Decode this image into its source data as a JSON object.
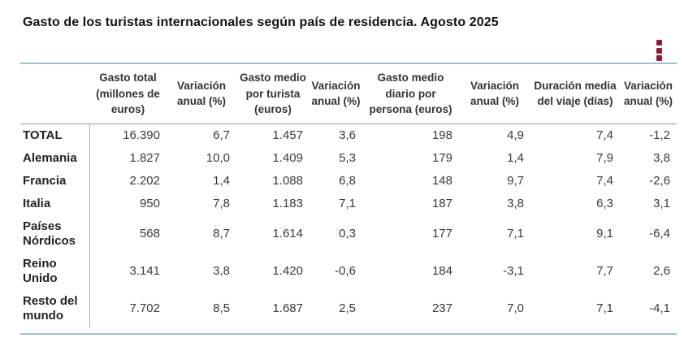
{
  "title": "Gasto de los turistas internacionales según país de residencia. Agosto 2025",
  "toolbar": {
    "options_menu_icon": "kebab-menu-icon"
  },
  "colors": {
    "accent": "#8c1b3c",
    "table_frame": "#a5bec6",
    "header_rule": "#9c9c9c",
    "column_rule": "#b2b2b2"
  },
  "chart_data": {
    "type": "table",
    "title": "Gasto de los turistas internacionales según país de residencia. Agosto 2025",
    "columns": [
      "",
      "Gasto total (millones de euros)",
      "Variación anual (%)",
      "Gasto medio por turista (euros)",
      "Variación anual (%)",
      "Gasto medio diario por persona (euros)",
      "Variación anual (%)",
      "Duración media del viaje (días)",
      "Variación anual (%)"
    ],
    "rows": [
      {
        "label": "TOTAL",
        "values": [
          "16.390",
          "6,7",
          "1.457",
          "3,6",
          "198",
          "4,9",
          "7,4",
          "-1,2"
        ]
      },
      {
        "label": "Alemania",
        "values": [
          "1.827",
          "10,0",
          "1.409",
          "5,3",
          "179",
          "1,4",
          "7,9",
          "3,8"
        ]
      },
      {
        "label": "Francia",
        "values": [
          "2.202",
          "1,4",
          "1.088",
          "6,8",
          "148",
          "9,7",
          "7,4",
          "-2,6"
        ]
      },
      {
        "label": "Italia",
        "values": [
          "950",
          "7,8",
          "1.183",
          "7,1",
          "187",
          "3,8",
          "6,3",
          "3,1"
        ]
      },
      {
        "label": "Países Nórdicos",
        "values": [
          "568",
          "8,7",
          "1.614",
          "0,3",
          "177",
          "7,1",
          "9,1",
          "-6,4"
        ]
      },
      {
        "label": "Reino Unido",
        "values": [
          "3.141",
          "3,8",
          "1.420",
          "-0,6",
          "184",
          "-3,1",
          "7,7",
          "2,6"
        ]
      },
      {
        "label": "Resto del mundo",
        "values": [
          "7.702",
          "8,5",
          "1.687",
          "2,5",
          "237",
          "7,0",
          "7,1",
          "-4,1"
        ]
      }
    ]
  }
}
